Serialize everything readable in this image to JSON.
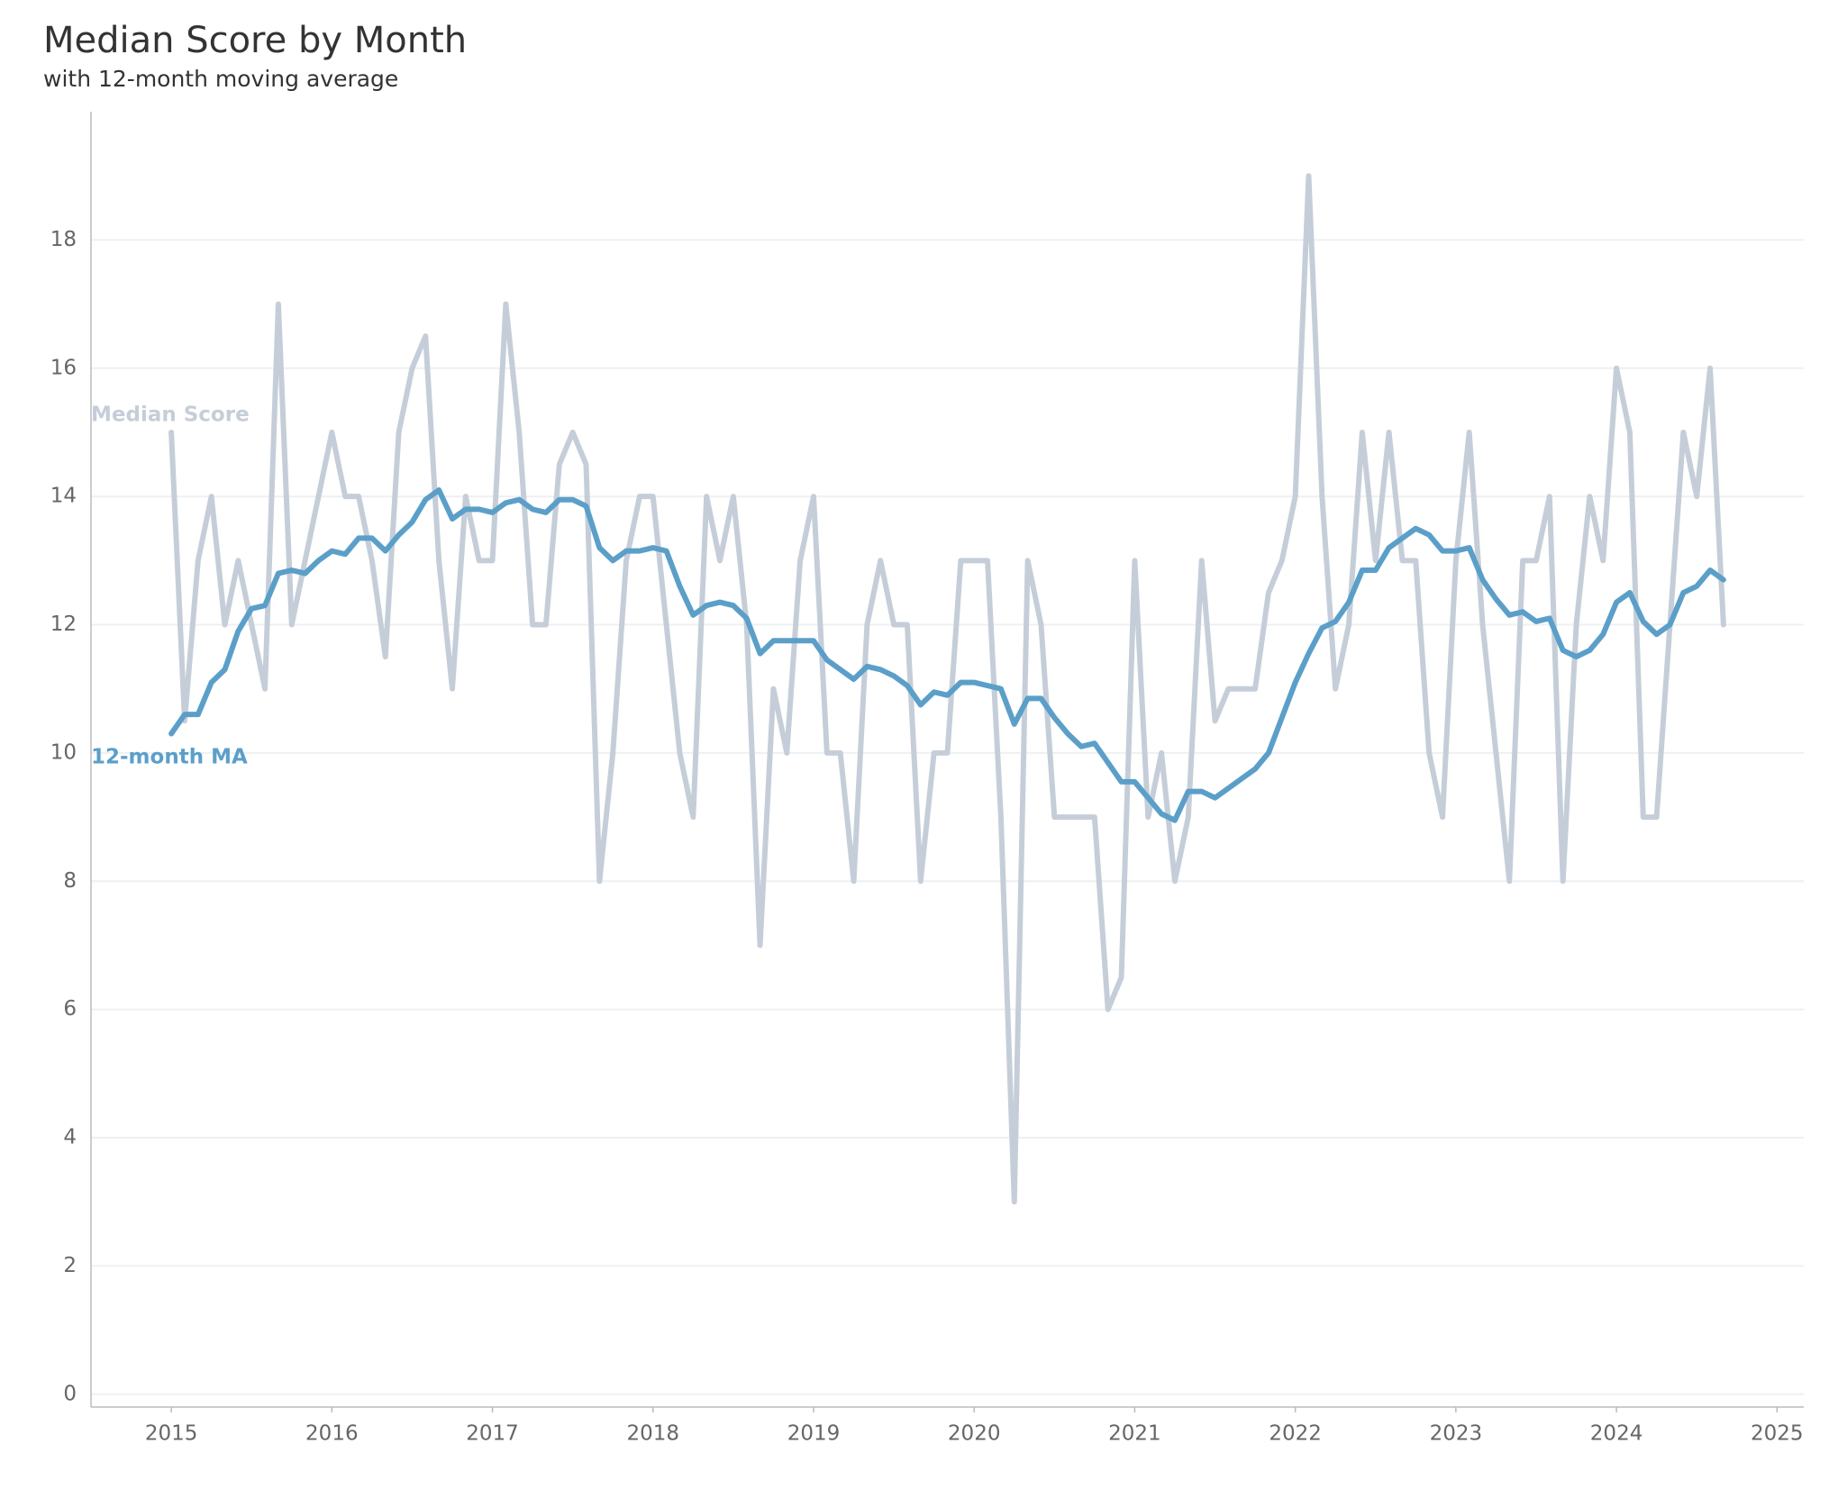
{
  "chart_data": {
    "type": "line",
    "title": "Median Score by Month",
    "subtitle": "with 12-month moving average",
    "x": [
      "2015-01",
      "2015-02",
      "2015-03",
      "2015-04",
      "2015-05",
      "2015-06",
      "2015-07",
      "2015-08",
      "2015-09",
      "2015-10",
      "2015-11",
      "2015-12",
      "2016-01",
      "2016-02",
      "2016-03",
      "2016-04",
      "2016-05",
      "2016-06",
      "2016-07",
      "2016-08",
      "2016-09",
      "2016-10",
      "2016-11",
      "2016-12",
      "2017-01",
      "2017-02",
      "2017-03",
      "2017-04",
      "2017-05",
      "2017-06",
      "2017-07",
      "2017-08",
      "2017-09",
      "2017-10",
      "2017-11",
      "2017-12",
      "2018-01",
      "2018-02",
      "2018-03",
      "2018-04",
      "2018-05",
      "2018-06",
      "2018-07",
      "2018-08",
      "2018-09",
      "2018-10",
      "2018-11",
      "2018-12",
      "2019-01",
      "2019-02",
      "2019-03",
      "2019-04",
      "2019-05",
      "2019-06",
      "2019-07",
      "2019-08",
      "2019-09",
      "2019-10",
      "2019-11",
      "2019-12",
      "2020-01",
      "2020-02",
      "2020-03",
      "2020-04",
      "2020-05",
      "2020-06",
      "2020-07",
      "2020-08",
      "2020-09",
      "2020-10",
      "2020-11",
      "2020-12",
      "2021-01",
      "2021-02",
      "2021-03",
      "2021-04",
      "2021-05",
      "2021-06",
      "2021-07",
      "2021-08",
      "2021-09",
      "2021-10",
      "2021-11",
      "2021-12",
      "2022-01",
      "2022-02",
      "2022-03",
      "2022-04",
      "2022-05",
      "2022-06",
      "2022-07",
      "2022-08",
      "2022-09",
      "2022-10",
      "2022-11",
      "2022-12",
      "2023-01",
      "2023-02",
      "2023-03",
      "2023-04",
      "2023-05",
      "2023-06",
      "2023-07",
      "2023-08",
      "2023-09",
      "2023-10",
      "2023-11",
      "2023-12",
      "2024-01",
      "2024-02",
      "2024-03",
      "2024-04",
      "2024-05",
      "2024-06",
      "2024-07",
      "2024-08",
      "2024-09"
    ],
    "series": [
      {
        "name": "Median Score",
        "color": "#c5ced8",
        "width": 6,
        "values": [
          15,
          10.5,
          13,
          14,
          12,
          13,
          12,
          11,
          17,
          12,
          13,
          14,
          15,
          14,
          14,
          13,
          11.5,
          15,
          16,
          16.5,
          13,
          11,
          14,
          13,
          13,
          17,
          15,
          12,
          12,
          14.5,
          15,
          14.5,
          8,
          10,
          13,
          14,
          14,
          12,
          10,
          9,
          14,
          13,
          14,
          12,
          7,
          11,
          10,
          13,
          14,
          10,
          10,
          8,
          12,
          13,
          12,
          12,
          8,
          10,
          10,
          13,
          13,
          13,
          9,
          3,
          13,
          12,
          9,
          9,
          9,
          9,
          6,
          6.5,
          13,
          9,
          10,
          8,
          9,
          13,
          10.5,
          11,
          11,
          11,
          12.5,
          13,
          14,
          19,
          14,
          11,
          12,
          15,
          13,
          15,
          13,
          13,
          10,
          9,
          13,
          15,
          12,
          10,
          8,
          13,
          13,
          14,
          8,
          12,
          14,
          13,
          16,
          15,
          9,
          9,
          12,
          15,
          14,
          16,
          12
        ]
      },
      {
        "name": "12-month MA",
        "color": "#5b9fc9",
        "width": 6,
        "values": [
          10.3,
          10.6,
          10.6,
          11.1,
          11.3,
          11.9,
          12.25,
          12.3,
          12.8,
          12.85,
          12.8,
          13.0,
          13.15,
          13.1,
          13.35,
          13.35,
          13.15,
          13.4,
          13.6,
          13.95,
          14.1,
          13.65,
          13.8,
          13.8,
          13.75,
          13.9,
          13.95,
          13.8,
          13.75,
          13.95,
          13.95,
          13.85,
          13.2,
          13.0,
          13.15,
          13.15,
          13.2,
          13.15,
          12.6,
          12.15,
          12.3,
          12.35,
          12.3,
          12.1,
          11.55,
          11.75,
          11.75,
          11.75,
          11.75,
          11.45,
          11.3,
          11.15,
          11.35,
          11.3,
          11.2,
          11.05,
          10.75,
          10.95,
          10.9,
          11.1,
          11.1,
          11.05,
          11.0,
          10.45,
          10.85,
          10.85,
          10.55,
          10.3,
          10.1,
          10.15,
          9.85,
          9.55,
          9.55,
          9.3,
          9.05,
          8.95,
          9.4,
          9.4,
          9.3,
          9.45,
          9.6,
          9.75,
          10.0,
          10.55,
          11.1,
          11.55,
          11.95,
          12.05,
          12.35,
          12.85,
          12.85,
          13.2,
          13.35,
          13.5,
          13.4,
          13.15,
          13.15,
          13.2,
          12.7,
          12.4,
          12.15,
          12.2,
          12.05,
          12.1,
          11.6,
          11.5,
          11.6,
          11.85,
          12.35,
          12.5,
          12.05,
          11.85,
          12.0,
          12.5,
          12.6,
          12.85,
          12.7
        ]
      }
    ],
    "xlim": [
      "2014-07",
      "2025-03"
    ],
    "xticks": [
      "2015",
      "2016",
      "2017",
      "2018",
      "2019",
      "2020",
      "2021",
      "2022",
      "2023",
      "2024",
      "2025"
    ],
    "ylim": [
      -0.2,
      20
    ],
    "yticks": [
      0,
      2,
      4,
      6,
      8,
      10,
      12,
      14,
      16,
      18
    ],
    "grid": true
  }
}
